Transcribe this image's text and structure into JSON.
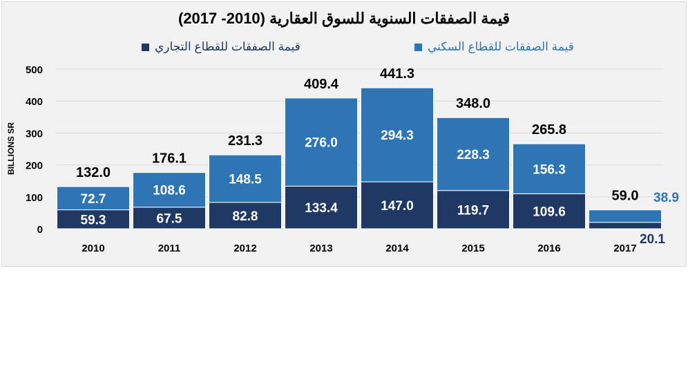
{
  "chart_data": {
    "type": "bar",
    "stacked": true,
    "title": "قيمة الصفقات السنوية للسوق العقارية (2010- 2017)",
    "ylabel": "BILLIONS SR",
    "xlabel": "",
    "ylim": [
      0,
      500
    ],
    "yticks": [
      0,
      100,
      200,
      300,
      400,
      500
    ],
    "grid": true,
    "legend_position": "top",
    "categories": [
      "2010",
      "2011",
      "2012",
      "2013",
      "2014",
      "2015",
      "2016",
      "2017"
    ],
    "series": [
      {
        "name": "قيمة الصفقات للقطاع التجاري",
        "color": "#1f3864",
        "values": [
          59.3,
          67.5,
          82.8,
          133.4,
          147.0,
          119.7,
          109.6,
          20.1
        ],
        "labels": [
          "59.3",
          "67.5",
          "82.8",
          "133.4",
          "147.0",
          "119.7",
          "109.6",
          "20.1"
        ]
      },
      {
        "name": "قيمة الصفقات للقطاع السكني",
        "color": "#2e75b6",
        "values": [
          72.7,
          108.6,
          148.5,
          276.0,
          294.3,
          228.3,
          156.3,
          38.9
        ],
        "labels": [
          "72.7",
          "108.6",
          "148.5",
          "276.0",
          "294.3",
          "228.3",
          "156.3",
          "38.9"
        ]
      }
    ],
    "totals": [
      "132.0",
      "176.1",
      "231.3",
      "409.4",
      "441.3",
      "348.0",
      "265.8",
      "59.0"
    ]
  }
}
